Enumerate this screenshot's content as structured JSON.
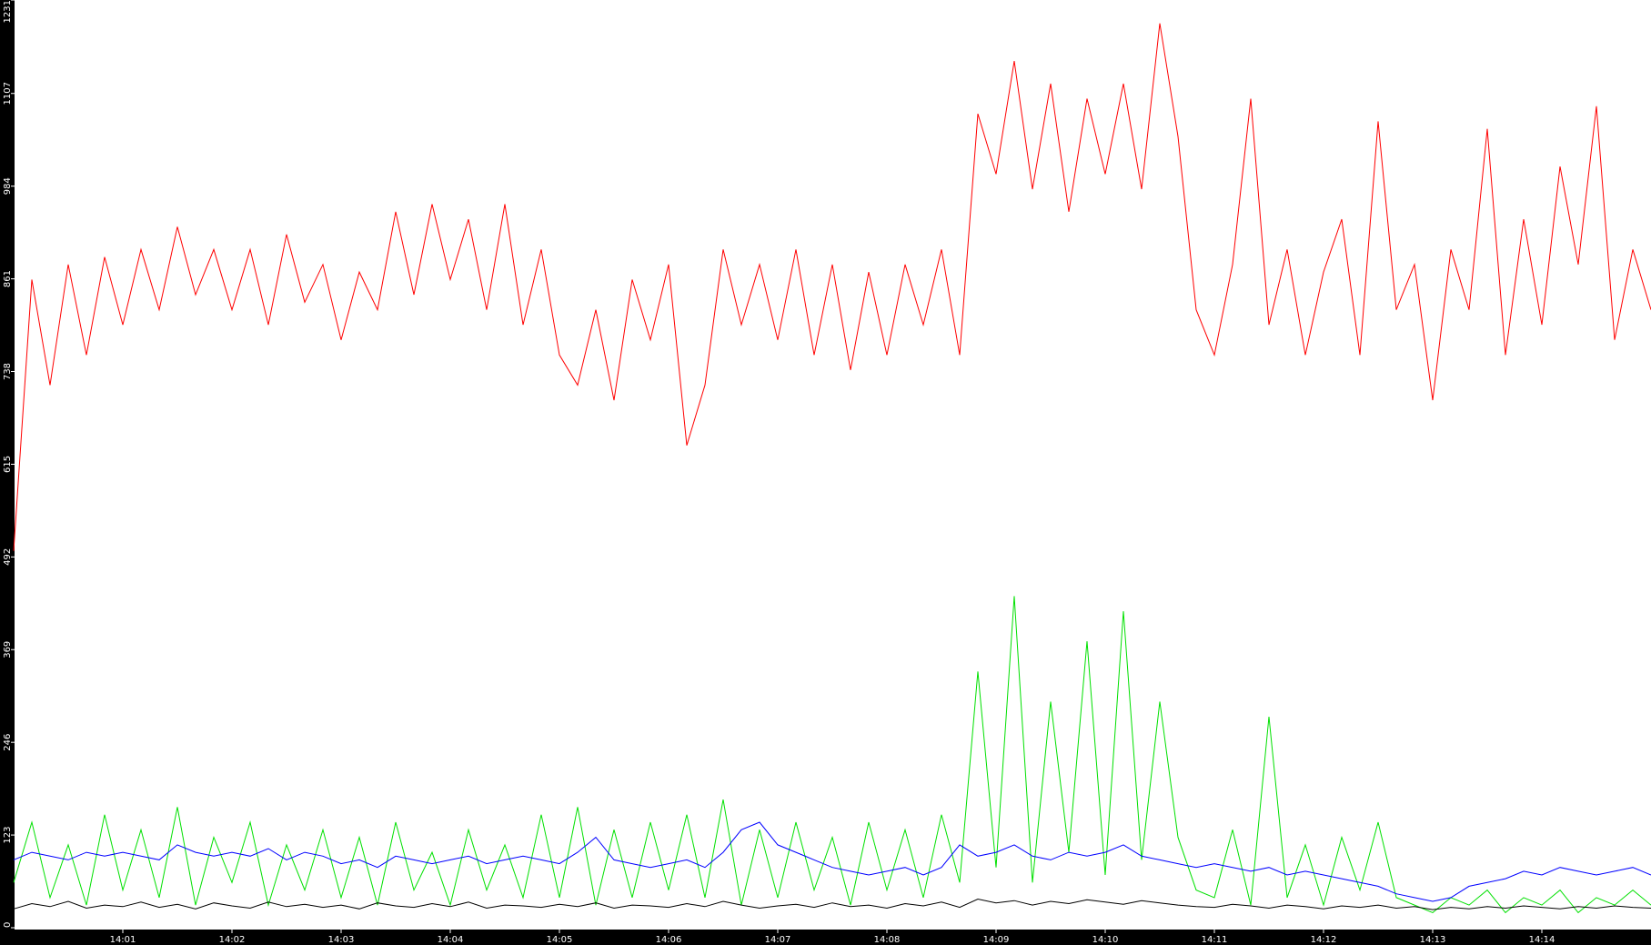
{
  "chart_data": {
    "type": "line",
    "title": "",
    "xlabel": "",
    "ylabel": "",
    "x_start": "14:00:00",
    "x_step_seconds": 10,
    "xlim": [
      "14:00",
      "14:15"
    ],
    "ylim": [
      0,
      1231
    ],
    "grid": false,
    "legend": "none",
    "x_tick_labels": [
      "14:01",
      "14:02",
      "14:03",
      "14:04",
      "14:05",
      "14:06",
      "14:07",
      "14:08",
      "14:09",
      "14:10",
      "14:11",
      "14:12",
      "14:13",
      "14:14"
    ],
    "y_tick_labels": [
      "0",
      "123",
      "246",
      "369",
      "492",
      "615",
      "738",
      "861",
      "984",
      "1107",
      "1231"
    ],
    "series": [
      {
        "color": "#ff0000",
        "values": [
          500,
          860,
          720,
          880,
          760,
          890,
          800,
          900,
          820,
          930,
          840,
          900,
          820,
          900,
          800,
          920,
          830,
          880,
          780,
          870,
          820,
          950,
          840,
          960,
          860,
          940,
          820,
          960,
          800,
          900,
          760,
          720,
          820,
          700,
          860,
          780,
          880,
          640,
          720,
          900,
          800,
          880,
          780,
          900,
          760,
          880,
          740,
          870,
          760,
          880,
          800,
          900,
          760,
          1080,
          1000,
          1150,
          980,
          1120,
          950,
          1100,
          1000,
          1120,
          980,
          1200,
          1050,
          820,
          760,
          880,
          1100,
          800,
          900,
          760,
          870,
          940,
          760,
          1070,
          820,
          880,
          700,
          900,
          820,
          1060,
          760,
          940,
          800,
          1010,
          880,
          1090,
          780,
          900,
          820
        ]
      },
      {
        "color": "#00e000",
        "values": [
          60,
          140,
          40,
          110,
          30,
          150,
          50,
          130,
          40,
          160,
          30,
          120,
          60,
          140,
          30,
          110,
          50,
          130,
          40,
          120,
          30,
          140,
          50,
          100,
          30,
          130,
          50,
          110,
          40,
          150,
          40,
          160,
          30,
          130,
          40,
          140,
          50,
          150,
          40,
          170,
          30,
          130,
          40,
          140,
          50,
          120,
          30,
          140,
          50,
          130,
          40,
          150,
          60,
          340,
          80,
          440,
          60,
          300,
          100,
          380,
          70,
          420,
          90,
          300,
          120,
          50,
          40,
          130,
          30,
          280,
          40,
          110,
          30,
          120,
          50,
          140,
          40,
          30,
          20,
          40,
          30,
          50,
          20,
          40,
          30,
          50,
          20,
          40,
          30,
          50,
          30
        ]
      },
      {
        "color": "#0000ff",
        "values": [
          90,
          100,
          95,
          90,
          100,
          95,
          100,
          95,
          90,
          110,
          100,
          95,
          100,
          95,
          105,
          90,
          100,
          95,
          85,
          90,
          80,
          95,
          90,
          85,
          90,
          95,
          85,
          90,
          95,
          90,
          85,
          100,
          120,
          90,
          85,
          80,
          85,
          90,
          80,
          100,
          130,
          140,
          110,
          100,
          90,
          80,
          75,
          70,
          75,
          80,
          70,
          80,
          110,
          95,
          100,
          110,
          95,
          90,
          100,
          95,
          100,
          110,
          95,
          90,
          85,
          80,
          85,
          80,
          75,
          80,
          70,
          75,
          70,
          65,
          60,
          55,
          45,
          40,
          35,
          40,
          55,
          60,
          65,
          75,
          70,
          80,
          75,
          70,
          75,
          80,
          70
        ]
      },
      {
        "color": "#000000",
        "values": [
          25,
          32,
          28,
          35,
          26,
          30,
          28,
          34,
          27,
          31,
          25,
          33,
          29,
          26,
          34,
          28,
          31,
          27,
          30,
          25,
          33,
          29,
          27,
          32,
          28,
          34,
          26,
          30,
          29,
          27,
          31,
          28,
          33,
          26,
          30,
          29,
          27,
          32,
          28,
          35,
          30,
          26,
          29,
          31,
          27,
          33,
          28,
          30,
          26,
          32,
          29,
          34,
          27,
          38,
          33,
          36,
          30,
          35,
          32,
          37,
          34,
          31,
          36,
          33,
          30,
          28,
          27,
          31,
          29,
          26,
          30,
          28,
          25,
          29,
          27,
          30,
          26,
          28,
          24,
          27,
          25,
          28,
          26,
          29,
          27,
          25,
          28,
          26,
          29,
          27,
          26
        ]
      }
    ]
  }
}
